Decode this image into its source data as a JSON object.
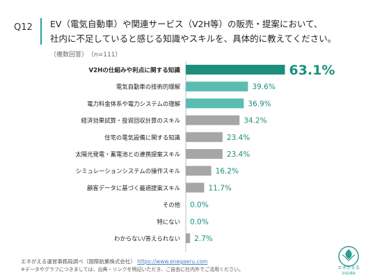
{
  "question": {
    "number": "Q12",
    "line1": "EV（電気自動車）や関連サービス（V2H等）の販売・提案において、",
    "line2": "社内に不足していると感じる知識やスキルを、具体的に教えてください。",
    "meta": "（複数回答）　（n=111）"
  },
  "chart_data": {
    "type": "bar",
    "orientation": "horizontal",
    "categories": [
      "V2Hの仕組みや利点に関する知識",
      "電気自動車の技術的理解",
      "電力料金体系や電力システムの理解",
      "経済効果試算・投資回収計算のスキル",
      "住宅の電気設備に関する知識",
      "太陽光発電・蓄電池との連携提案スキル",
      "シミュレーションシステムの操作スキル",
      "顧客データに基づく最適提案スキル",
      "その他",
      "特にない",
      "わからない/答えられない"
    ],
    "values": [
      63.1,
      39.6,
      36.9,
      34.2,
      23.4,
      23.4,
      16.2,
      11.7,
      0.0,
      0.0,
      2.7
    ],
    "value_labels": [
      "63.1%",
      "39.6%",
      "36.9%",
      "34.2%",
      "23.4%",
      "23.4%",
      "16.2%",
      "11.7%",
      "0.0%",
      "0.0%",
      "2.7%"
    ],
    "bar_colors": [
      "#1b8f7c",
      "#5bbdb0",
      "#5bbdb0",
      "#a6a6a6",
      "#a6a6a6",
      "#a6a6a6",
      "#a6a6a6",
      "#a6a6a6",
      "#a6a6a6",
      "#a6a6a6",
      "#a6a6a6"
    ],
    "label_colors": [
      "#1b8f7c",
      "#1b8f7c",
      "#1b8f7c",
      "#1b8f7c",
      "#1b8f7c",
      "#1b8f7c",
      "#1b8f7c",
      "#1b8f7c",
      "#1b8f7c",
      "#1b8f7c",
      "#1b8f7c"
    ],
    "xlim": [
      0,
      70
    ],
    "grid": false
  },
  "footer": {
    "source_prefix": "エネがえる運営事務局調べ（国際航業株式会社）",
    "url": "https://www.enegaeru.com",
    "note": "※データやグラフにつきましては、出典・リンクを明記いただき、ご自由に社内外でご活用ください。"
  },
  "logo": {
    "line1": "エネがえる",
    "line2": "inside",
    "color": "#2a9d8f"
  }
}
